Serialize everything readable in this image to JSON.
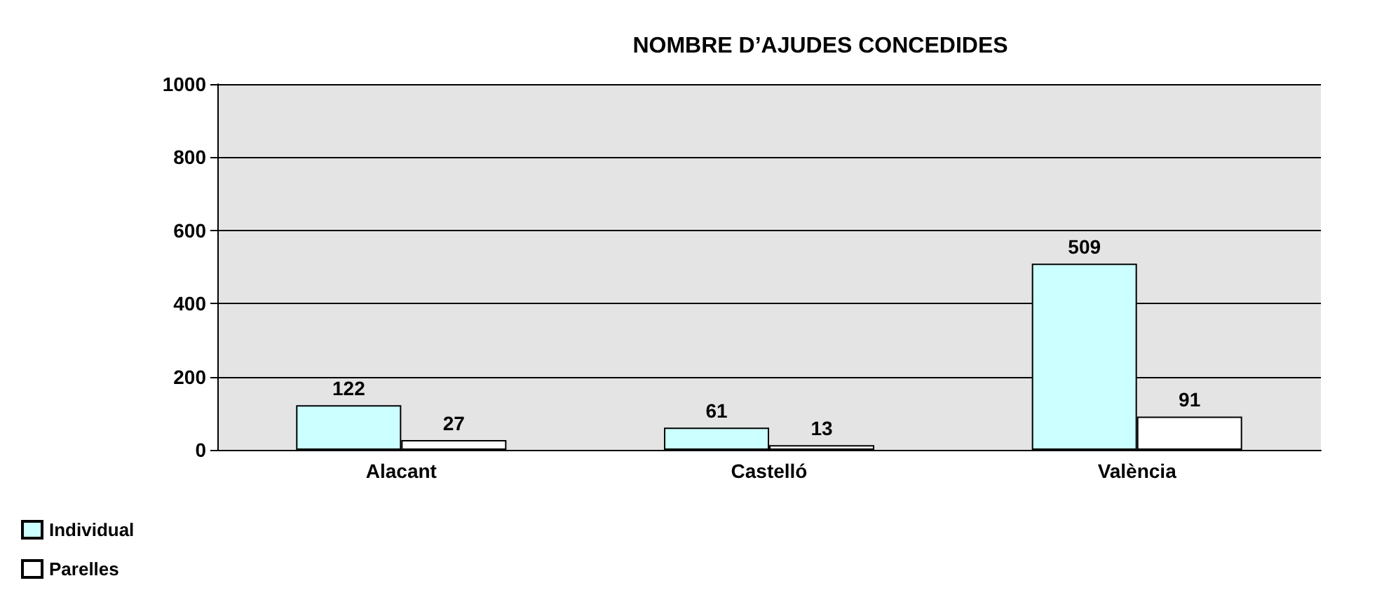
{
  "chart_data": {
    "type": "bar",
    "title": "NOMBRE D’AJUDES CONCEDIDES",
    "categories": [
      "Alacant",
      "Castelló",
      "València"
    ],
    "series": [
      {
        "name": "Individual",
        "color": "#ccffff",
        "values": [
          122,
          61,
          509
        ]
      },
      {
        "name": "Parelles",
        "color": "#ffffff",
        "values": [
          27,
          13,
          91
        ]
      }
    ],
    "ylim": [
      0,
      1000
    ],
    "yticks": [
      0,
      200,
      400,
      600,
      800,
      1000
    ],
    "grid": "y",
    "legend": "bottom left",
    "data_labels": true
  }
}
